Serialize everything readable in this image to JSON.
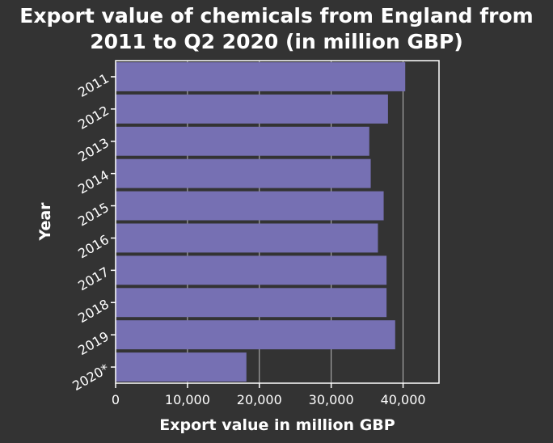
{
  "colors": {
    "background": "#333333",
    "plot_border": "#ffffff",
    "bar": "#7670b3",
    "grid": "#bbbbbb",
    "text": "#ffffff"
  },
  "chart_data": {
    "type": "bar",
    "orientation": "horizontal",
    "title_lines": [
      "Export value of chemicals from England from",
      "2011 to Q2 2020 (in million GBP)"
    ],
    "xlabel": "Export value in million GBP",
    "ylabel": "Year",
    "categories": [
      "2011",
      "2012",
      "2013",
      "2014",
      "2015",
      "2016",
      "2017",
      "2018",
      "2019",
      "2020*"
    ],
    "values": [
      40300,
      37900,
      35300,
      35500,
      37300,
      36500,
      37700,
      37700,
      38900,
      18200
    ],
    "xlim": [
      0,
      45000
    ],
    "xticks": [
      0,
      10000,
      20000,
      30000,
      40000
    ],
    "xtick_labels": [
      "0",
      "10,000",
      "20,000",
      "30,000",
      "40,000"
    ],
    "grid": "vertical"
  }
}
